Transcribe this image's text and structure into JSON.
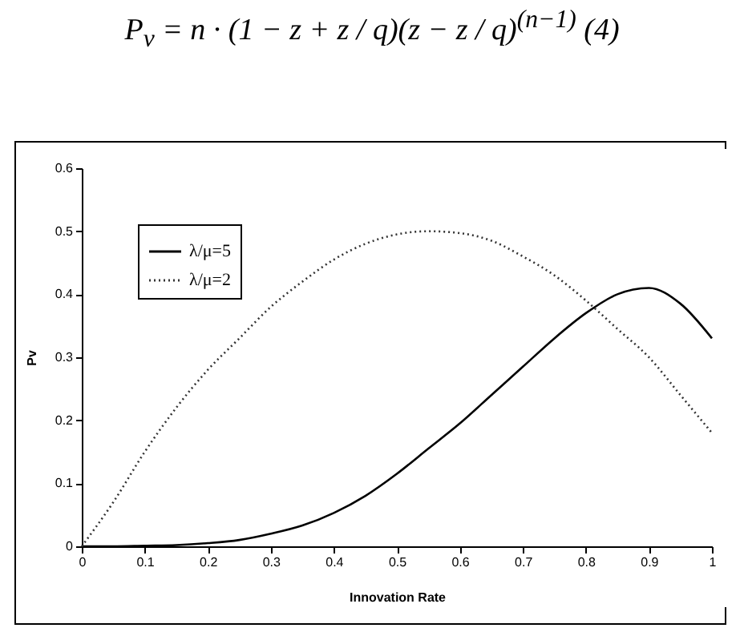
{
  "chart_data": {
    "type": "line",
    "title": "P$_{v}$ = n · (1 − z + z / q)(z − z / q)$^{(n−1)}$          (4)",
    "xlabel": "Innovation Rate",
    "ylabel": "Pv",
    "x": [
      0,
      0.05,
      0.1,
      0.15,
      0.2,
      0.25,
      0.3,
      0.35,
      0.4,
      0.45,
      0.5,
      0.55,
      0.6,
      0.65,
      0.7,
      0.75,
      0.8,
      0.85,
      0.9,
      0.95,
      1
    ],
    "series": [
      {
        "name": "λ/μ=5",
        "color": "#000000",
        "line_style": "solid",
        "values": [
          0,
          0,
          0.001,
          0.002,
          0.005,
          0.01,
          0.02,
          0.033,
          0.053,
          0.08,
          0.115,
          0.155,
          0.195,
          0.24,
          0.285,
          0.33,
          0.37,
          0.4,
          0.41,
          0.385,
          0.33
        ]
      },
      {
        "name": "λ/μ=2",
        "color": "#333333",
        "line_style": "dotted",
        "values": [
          0,
          0.07,
          0.15,
          0.22,
          0.28,
          0.33,
          0.38,
          0.42,
          0.455,
          0.48,
          0.495,
          0.5,
          0.497,
          0.485,
          0.46,
          0.43,
          0.39,
          0.345,
          0.3,
          0.24,
          0.18
        ]
      }
    ],
    "xlim": [
      0,
      1
    ],
    "xticks": [
      0,
      0.1,
      0.2,
      0.3,
      0.4,
      0.5,
      0.6,
      0.7,
      0.8,
      0.9,
      1
    ],
    "ylim": [
      0,
      0.6
    ],
    "yticks": [
      0,
      0.1,
      0.2,
      0.3,
      0.4,
      0.5,
      0.6
    ],
    "grid": false,
    "legend": "top left",
    "marker": "none"
  }
}
